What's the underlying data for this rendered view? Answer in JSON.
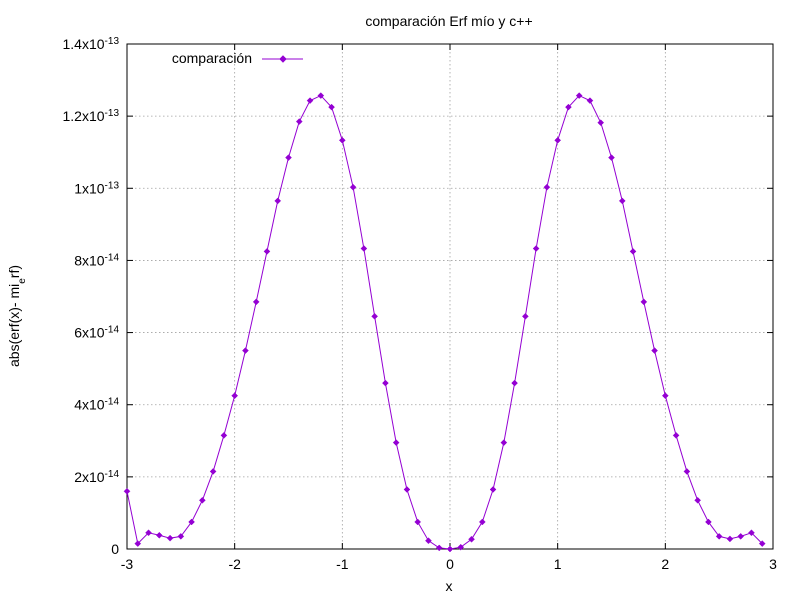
{
  "chart_data": {
    "type": "line",
    "title": "comparación Erf mío y c++",
    "xlabel": "x",
    "ylabel_parts": [
      "abs(erf(x)- mi",
      "e",
      "rf)"
    ],
    "xlim": [
      -3,
      3
    ],
    "ylim": [
      0,
      1.4e-13
    ],
    "grid": true,
    "legend_position": "top-left",
    "line_color": "#9400d3",
    "x_ticks": [
      {
        "value": -3,
        "label": "-3"
      },
      {
        "value": -2,
        "label": "-2"
      },
      {
        "value": -1,
        "label": "-1"
      },
      {
        "value": 0,
        "label": "0"
      },
      {
        "value": 1,
        "label": "1"
      },
      {
        "value": 2,
        "label": "2"
      },
      {
        "value": 3,
        "label": "3"
      }
    ],
    "y_ticks": [
      {
        "value": 0,
        "label": "0"
      },
      {
        "value": 2e-14,
        "mantissa": "2x10",
        "exponent": "-14"
      },
      {
        "value": 4e-14,
        "mantissa": "4x10",
        "exponent": "-14"
      },
      {
        "value": 6e-14,
        "mantissa": "6x10",
        "exponent": "-14"
      },
      {
        "value": 8e-14,
        "mantissa": "8x10",
        "exponent": "-14"
      },
      {
        "value": 1e-13,
        "mantissa": "1x10",
        "exponent": "-13"
      },
      {
        "value": 1.2e-13,
        "mantissa": "1.2x10",
        "exponent": "-13"
      },
      {
        "value": 1.4e-13,
        "mantissa": "1.4x10",
        "exponent": "-13"
      }
    ],
    "series": [
      {
        "name": "comparación",
        "points": [
          [
            -3.0,
            1.6e-14
          ],
          [
            -2.9,
            1.5e-15
          ],
          [
            -2.8,
            4.5e-15
          ],
          [
            -2.7,
            3.8e-15
          ],
          [
            -2.6,
            3e-15
          ],
          [
            -2.5,
            3.5e-15
          ],
          [
            -2.4,
            7.5e-15
          ],
          [
            -2.3,
            1.35e-14
          ],
          [
            -2.2,
            2.15e-14
          ],
          [
            -2.1,
            3.15e-14
          ],
          [
            -2.0,
            4.25e-14
          ],
          [
            -1.9,
            5.5e-14
          ],
          [
            -1.8,
            6.85e-14
          ],
          [
            -1.7,
            8.25e-14
          ],
          [
            -1.6,
            9.65e-14
          ],
          [
            -1.5,
            1.085e-13
          ],
          [
            -1.4,
            1.185e-13
          ],
          [
            -1.3,
            1.243e-13
          ],
          [
            -1.2,
            1.257e-13
          ],
          [
            -1.1,
            1.225e-13
          ],
          [
            -1.0,
            1.133e-13
          ],
          [
            -0.9,
            1.003e-13
          ],
          [
            -0.8,
            8.33e-14
          ],
          [
            -0.7,
            6.45e-14
          ],
          [
            -0.6,
            4.6e-14
          ],
          [
            -0.5,
            2.95e-14
          ],
          [
            -0.4,
            1.65e-14
          ],
          [
            -0.3,
            7.5e-15
          ],
          [
            -0.2,
            2.3e-15
          ],
          [
            -0.1,
            3e-16
          ],
          [
            0.0,
            0.0
          ],
          [
            0.1,
            5e-16
          ],
          [
            0.2,
            2.7e-15
          ],
          [
            0.3,
            7.5e-15
          ],
          [
            0.4,
            1.65e-14
          ],
          [
            0.5,
            2.95e-14
          ],
          [
            0.6,
            4.6e-14
          ],
          [
            0.7,
            6.45e-14
          ],
          [
            0.8,
            8.33e-14
          ],
          [
            0.9,
            1.003e-13
          ],
          [
            1.0,
            1.133e-13
          ],
          [
            1.1,
            1.225e-13
          ],
          [
            1.2,
            1.257e-13
          ],
          [
            1.3,
            1.243e-13
          ],
          [
            1.4,
            1.182e-13
          ],
          [
            1.5,
            1.085e-13
          ],
          [
            1.6,
            9.65e-14
          ],
          [
            1.7,
            8.25e-14
          ],
          [
            1.8,
            6.85e-14
          ],
          [
            1.9,
            5.5e-14
          ],
          [
            2.0,
            4.25e-14
          ],
          [
            2.1,
            3.15e-14
          ],
          [
            2.2,
            2.15e-14
          ],
          [
            2.3,
            1.35e-14
          ],
          [
            2.4,
            7.5e-15
          ],
          [
            2.5,
            3.5e-15
          ],
          [
            2.6,
            2.8e-15
          ],
          [
            2.7,
            3.5e-15
          ],
          [
            2.8,
            4.5e-15
          ],
          [
            2.9,
            1.5e-15
          ]
        ]
      }
    ]
  }
}
